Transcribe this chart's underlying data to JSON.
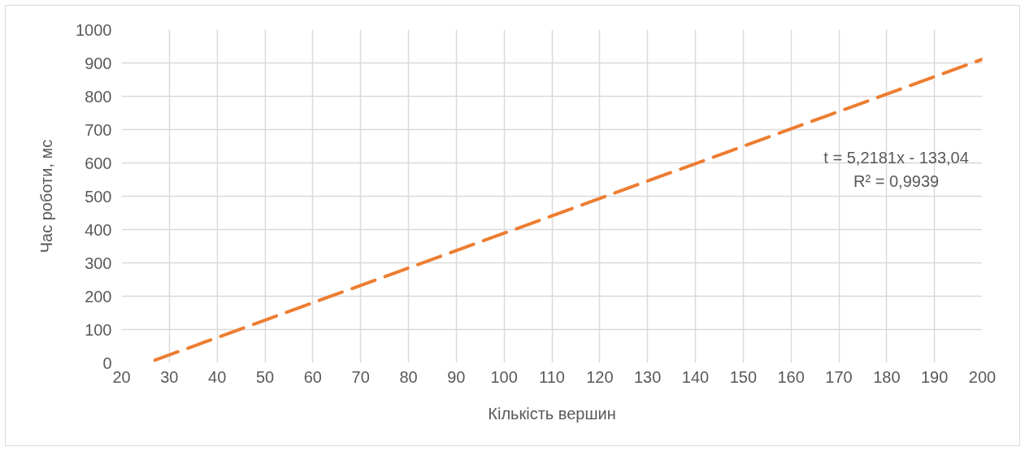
{
  "chart_data": {
    "type": "line",
    "xlabel": "Кількість вершин",
    "ylabel": "Час роботи, мс",
    "x": [
      27,
      200
    ],
    "series": [
      {
        "color": "#ed7d31",
        "values": [
          8,
          911
        ]
      }
    ],
    "line_style": "dashed",
    "xlim": [
      20,
      200
    ],
    "xticks": [
      20,
      30,
      40,
      50,
      60,
      70,
      80,
      90,
      100,
      110,
      120,
      130,
      140,
      150,
      160,
      170,
      180,
      190,
      200
    ],
    "ylim": [
      0,
      1000
    ],
    "yticks": [
      0,
      100,
      200,
      300,
      400,
      500,
      600,
      700,
      800,
      900,
      1000
    ],
    "grid": true,
    "annotations": [
      "t = 5,2181x - 133,04",
      "R² = 0,9939"
    ]
  }
}
